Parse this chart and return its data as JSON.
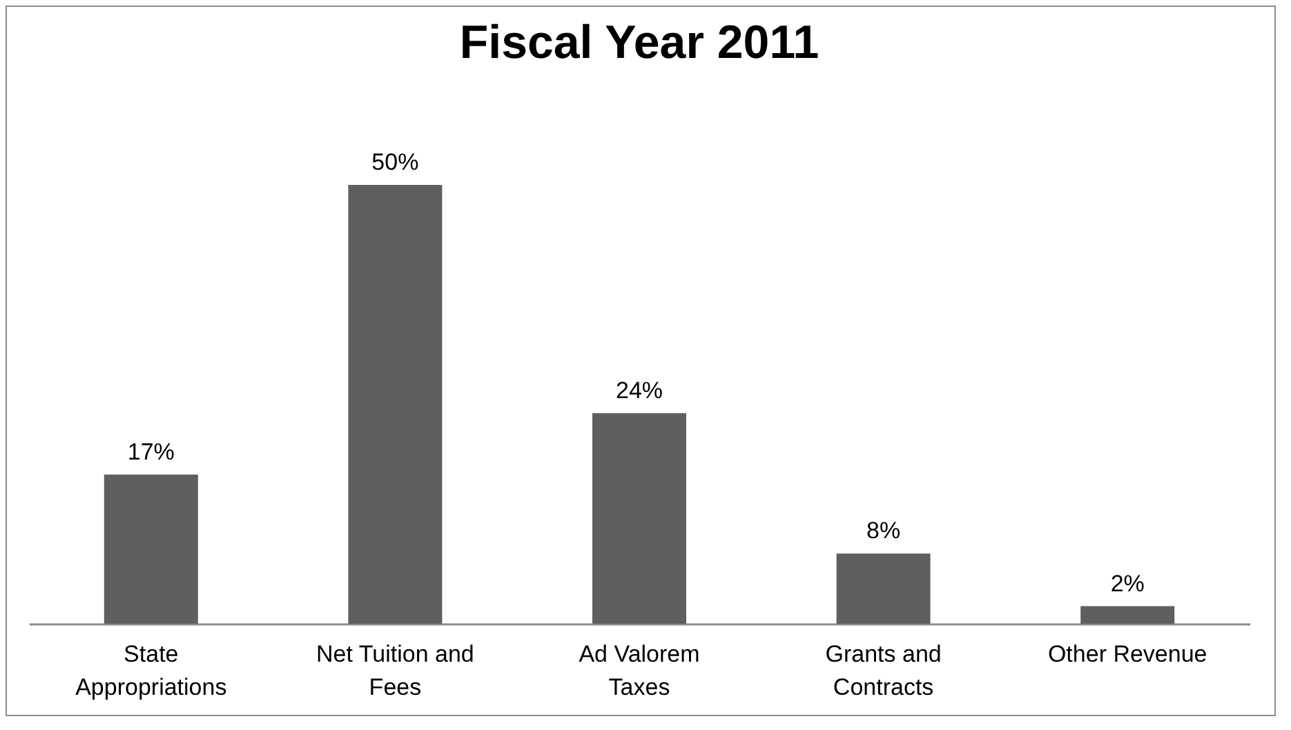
{
  "chart_data": {
    "type": "bar",
    "title": "Fiscal Year 2011",
    "categories": [
      "State Appropriations",
      "Net Tuition and Fees",
      "Ad Valorem Taxes",
      "Grants and Contracts",
      "Other Revenue"
    ],
    "values": [
      17,
      50,
      24,
      8,
      2
    ],
    "color": "#5f5f5f",
    "value_labels": [
      "17%",
      "50%",
      "24%",
      "8%",
      "2%"
    ]
  }
}
